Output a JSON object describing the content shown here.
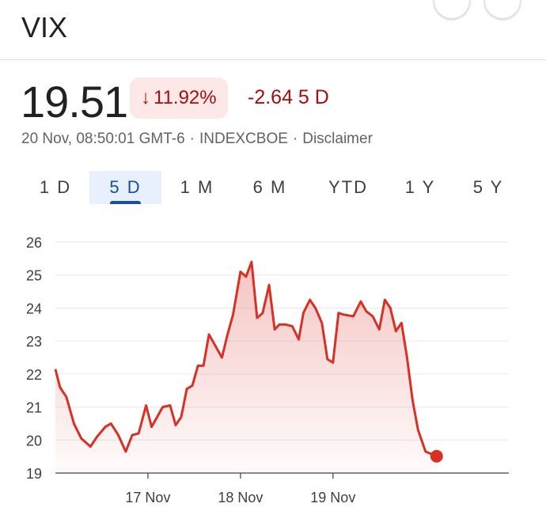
{
  "header": {
    "title": "VIX"
  },
  "quote": {
    "price": "19.51",
    "change_arrow": "↓",
    "change_percent": "11.92%",
    "change_absolute": "-2.64 5 D",
    "timestamp": "20 Nov, 08:50:01 GMT-6",
    "separator": "·",
    "exchange": "INDEXCBOE",
    "disclaimer": "Disclaimer"
  },
  "ranges": [
    {
      "label": "1 D",
      "active": false
    },
    {
      "label": "5 D",
      "active": true
    },
    {
      "label": "1 M",
      "active": false
    },
    {
      "label": "6 M",
      "active": false
    },
    {
      "label": "YTD",
      "active": false
    },
    {
      "label": "1 Y",
      "active": false
    },
    {
      "label": "5 Y",
      "active": false
    }
  ],
  "colors": {
    "line": "#d93025",
    "negative_text": "#a50e0e",
    "badge_bg": "#fce8e6",
    "active_tab": "#174ea6"
  },
  "chart_data": {
    "type": "area",
    "xlabel": "",
    "ylabel": "",
    "ylim": [
      19,
      26
    ],
    "y_ticks": [
      19,
      20,
      21,
      22,
      23,
      24,
      25,
      26
    ],
    "x_ticks": [
      {
        "label": "17 Nov",
        "x": 10
      },
      {
        "label": "18 Nov",
        "x": 20
      },
      {
        "label": "19 Nov",
        "x": 30
      }
    ],
    "xlim": [
      0,
      49
    ],
    "grid": true,
    "series": [
      {
        "x": [
          0,
          0.5,
          1.2,
          2,
          2.8,
          3.8,
          4.5,
          5.4,
          6,
          6.8,
          7.6,
          8.3,
          9,
          9.8,
          10.4,
          11,
          11.6,
          12.4,
          13,
          13.6,
          14.2,
          14.8,
          15.4,
          16,
          16.6,
          17.2,
          18,
          18.6,
          19.2,
          20,
          20.6,
          21.2,
          21.8,
          22.4,
          23.1,
          23.7,
          24.2,
          24.9,
          25.6,
          26.3,
          26.8,
          27.5,
          28.1,
          28.8,
          29.4,
          30,
          30.6,
          31.2,
          32.2,
          33,
          33.6,
          34.3,
          35,
          35.6,
          36.2,
          36.8,
          37.4,
          38,
          38.6,
          39.2,
          40,
          41.2
        ],
        "values": [
          22.15,
          21.6,
          21.3,
          20.5,
          20.05,
          19.8,
          20.1,
          20.4,
          20.5,
          20.15,
          19.65,
          20.15,
          20.2,
          21.05,
          20.4,
          20.7,
          21.0,
          21.05,
          20.45,
          20.7,
          21.55,
          21.65,
          22.25,
          22.25,
          23.2,
          22.9,
          22.5,
          23.2,
          23.8,
          25.1,
          24.95,
          25.4,
          23.7,
          23.85,
          24.7,
          23.35,
          23.5,
          23.5,
          23.45,
          23.05,
          23.85,
          24.25,
          24.0,
          23.55,
          22.45,
          22.35,
          23.85,
          23.8,
          23.75,
          24.2,
          23.9,
          23.75,
          23.35,
          24.25,
          24.0,
          23.3,
          23.55,
          22.5,
          21.2,
          20.3,
          19.65,
          19.51
        ]
      }
    ]
  }
}
